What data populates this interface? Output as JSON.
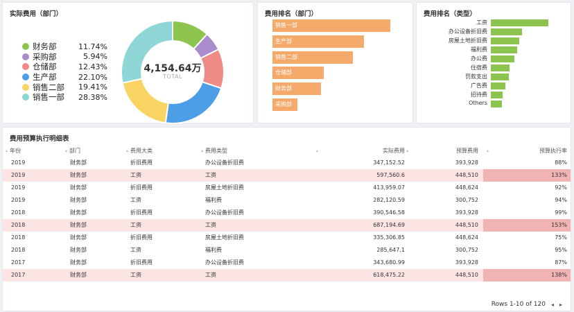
{
  "panels": {
    "dept_cost_title": "实际费用（部门）",
    "dept_rank_title": "费用排名（部门）",
    "type_rank_title": "费用排名（类型）",
    "table_title": "费用预算执行明细表"
  },
  "donut": {
    "center_value": "4,154.64万",
    "center_label": "TOTAL",
    "colors": {
      "finance": "#8dc44f",
      "purchase": "#a98ccc",
      "warehouse": "#f08c87",
      "production": "#4c9ee6",
      "sales2": "#fad462",
      "sales1": "#8fd6d6"
    }
  },
  "chart_data": [
    {
      "type": "pie",
      "categories": [
        "财务部",
        "采购部",
        "仓储部",
        "生产部",
        "销售二部",
        "销售一部"
      ],
      "values": [
        11.74,
        5.94,
        12.43,
        22.1,
        19.41,
        28.38
      ],
      "labels": [
        "11.74%",
        "5.94%",
        "12.43%",
        "22.10%",
        "19.41%",
        "28.38%"
      ],
      "title": "实际费用（部门）"
    },
    {
      "type": "bar",
      "orientation": "horizontal",
      "title": "费用排名（部门）",
      "categories": [
        "销售一部",
        "生产部",
        "销售二部",
        "仓储部",
        "财务部",
        "采购部"
      ],
      "values": [
        1179,
        918,
        806,
        516,
        488,
        247
      ],
      "color": "#f5a96b"
    },
    {
      "type": "bar",
      "orientation": "horizontal",
      "title": "费用排名（类型）",
      "categories": [
        "工资",
        "办公设备折旧费",
        "房屋土地折旧费",
        "福利费",
        "办公费",
        "住宿费",
        "罚款支出",
        "广告费",
        "招待费",
        "Others"
      ],
      "values": [
        100,
        54,
        49,
        46,
        41,
        33,
        31,
        25,
        21,
        19
      ],
      "color": "#8dc44f"
    }
  ],
  "table": {
    "headers": {
      "year": "年份",
      "dept": "部门",
      "category": "费用大类",
      "type": "费用类型",
      "actual": "实际费用",
      "budget": "预算费用",
      "rate": "预算执行率"
    },
    "rows": [
      {
        "year": "2019",
        "dept": "财务部",
        "category": "折旧费用",
        "type": "办公设备折旧费",
        "actual": "347,152.52",
        "budget": "393,928",
        "rate": "88%",
        "highlight": false
      },
      {
        "year": "2019",
        "dept": "财务部",
        "category": "工资",
        "type": "工资",
        "actual": "597,560.6",
        "budget": "448,510",
        "rate": "133%",
        "highlight": true
      },
      {
        "year": "2019",
        "dept": "财务部",
        "category": "折旧费用",
        "type": "房屋土地折旧费",
        "actual": "413,959.07",
        "budget": "448,624",
        "rate": "92%",
        "highlight": false
      },
      {
        "year": "2019",
        "dept": "财务部",
        "category": "工资",
        "type": "福利费",
        "actual": "282,120.59",
        "budget": "300,752",
        "rate": "94%",
        "highlight": false
      },
      {
        "year": "2018",
        "dept": "财务部",
        "category": "折旧费用",
        "type": "办公设备折旧费",
        "actual": "390,546.58",
        "budget": "393,928",
        "rate": "99%",
        "highlight": false
      },
      {
        "year": "2018",
        "dept": "财务部",
        "category": "工资",
        "type": "工资",
        "actual": "687,194.69",
        "budget": "448,510",
        "rate": "153%",
        "highlight": true
      },
      {
        "year": "2018",
        "dept": "财务部",
        "category": "折旧费用",
        "type": "房屋土地折旧费",
        "actual": "335,306.85",
        "budget": "448,624",
        "rate": "75%",
        "highlight": false
      },
      {
        "year": "2018",
        "dept": "财务部",
        "category": "工资",
        "type": "福利费",
        "actual": "285,647.1",
        "budget": "300,752",
        "rate": "95%",
        "highlight": false
      },
      {
        "year": "2017",
        "dept": "财务部",
        "category": "折旧费用",
        "type": "办公设备折旧费",
        "actual": "343,680.99",
        "budget": "393,928",
        "rate": "87%",
        "highlight": false
      },
      {
        "year": "2017",
        "dept": "财务部",
        "category": "工资",
        "type": "工资",
        "actual": "618,475.22",
        "budget": "448,510",
        "rate": "138%",
        "highlight": true
      }
    ],
    "footer": "Rows 1-10 of 120",
    "prev_icon": "◂",
    "next_icon": "▸"
  }
}
